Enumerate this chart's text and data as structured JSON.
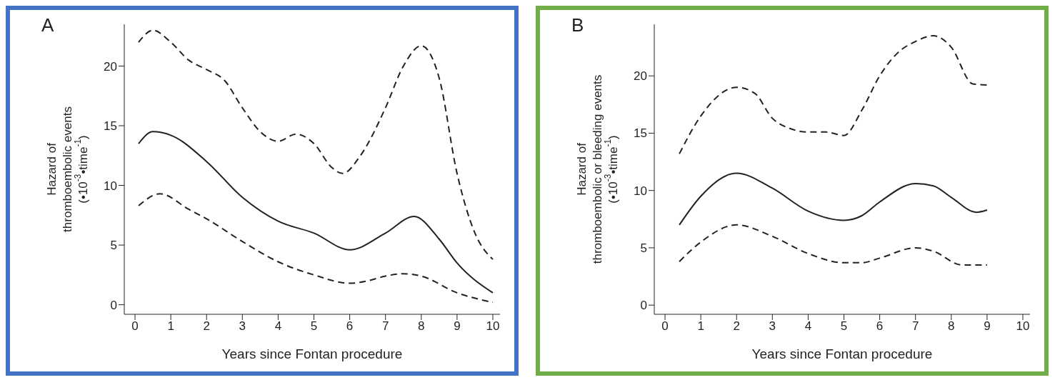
{
  "chart_data": [
    {
      "type": "line",
      "title": "A",
      "xlabel": "Years since Fontan procedure",
      "ylabel": "Hazard of\nthromboembolic events\n(•10$^{-3}$•time$^{-1}$)",
      "xlim": [
        -0.3,
        10.2
      ],
      "xticks": [
        0,
        1,
        2,
        3,
        4,
        5,
        6,
        7,
        8,
        9,
        10
      ],
      "ylim": [
        -0.8,
        23.5
      ],
      "yticks": [
        0,
        5,
        10,
        15,
        20
      ],
      "grid": false,
      "legend": false,
      "marker": "none",
      "series": [
        {
          "color": "#222222",
          "line_style": "dashed",
          "x": [
            0.1,
            0.5,
            1,
            1.5,
            2,
            2.5,
            3,
            3.5,
            4,
            4.5,
            5,
            5.5,
            5.8,
            6.3,
            7,
            7.5,
            8,
            8.5,
            9,
            9.5,
            10
          ],
          "values": [
            22,
            23,
            22,
            20.5,
            19.7,
            18.8,
            16.5,
            14.5,
            13.7,
            14.3,
            13.5,
            11.5,
            11,
            12.5,
            16.5,
            20,
            21.7,
            19,
            11,
            6,
            3.8
          ]
        },
        {
          "color": "#222222",
          "line_style": "solid",
          "x": [
            0.1,
            0.5,
            1,
            2,
            3,
            4,
            5,
            6,
            7,
            7.8,
            8.5,
            9,
            10
          ],
          "values": [
            13.5,
            14.5,
            14.2,
            12,
            9,
            7,
            6,
            4.6,
            6,
            7.4,
            5.5,
            3.5,
            1
          ]
        },
        {
          "color": "#222222",
          "line_style": "dashed",
          "x": [
            0.1,
            0.7,
            1.5,
            2,
            3,
            4,
            5,
            6,
            6.5,
            7,
            7.5,
            8,
            9,
            10
          ],
          "values": [
            8.3,
            9.3,
            8,
            7.2,
            5.3,
            3.6,
            2.5,
            1.8,
            2,
            2.4,
            2.6,
            2.4,
            1,
            0.2
          ]
        }
      ]
    },
    {
      "type": "line",
      "title": "B",
      "xlabel": "Years since Fontan procedure",
      "ylabel": "Hazard of\nthromboembolic or bleeding events\n(•10$^{-3}$•time$^{-1}$)",
      "xlim": [
        -0.3,
        10.2
      ],
      "xticks": [
        0,
        1,
        2,
        3,
        4,
        5,
        6,
        7,
        8,
        9,
        10
      ],
      "ylim": [
        -0.8,
        24.5
      ],
      "yticks": [
        0,
        5,
        10,
        15,
        20
      ],
      "grid": false,
      "legend": false,
      "marker": "none",
      "series": [
        {
          "color": "#222222",
          "line_style": "dashed",
          "x": [
            0.4,
            1,
            2,
            2.5,
            3,
            3.5,
            4,
            4.5,
            5,
            5.5,
            6,
            6.5,
            7,
            7.5,
            8,
            8.6,
            9
          ],
          "values": [
            13.2,
            16.5,
            19,
            18.5,
            16.3,
            15.4,
            15.1,
            15.1,
            14.8,
            17,
            20,
            22,
            23,
            23.5,
            22.5,
            19.3,
            19.2
          ]
        },
        {
          "color": "#222222",
          "line_style": "solid",
          "x": [
            0.4,
            1,
            2,
            3,
            4,
            5,
            5.5,
            6,
            7,
            7.5,
            8,
            8.7,
            9
          ],
          "values": [
            7,
            9.5,
            11.5,
            10.2,
            8.2,
            7.4,
            7.8,
            9,
            10.6,
            10.4,
            9.4,
            8.1,
            8.3
          ]
        },
        {
          "color": "#222222",
          "line_style": "dashed",
          "x": [
            0.4,
            1,
            2,
            3,
            4,
            5,
            5.5,
            6,
            7,
            7.5,
            8.3,
            9
          ],
          "values": [
            3.8,
            5.5,
            7,
            6,
            4.5,
            3.7,
            3.7,
            4.1,
            5,
            4.7,
            3.5,
            3.5
          ]
        }
      ]
    }
  ]
}
